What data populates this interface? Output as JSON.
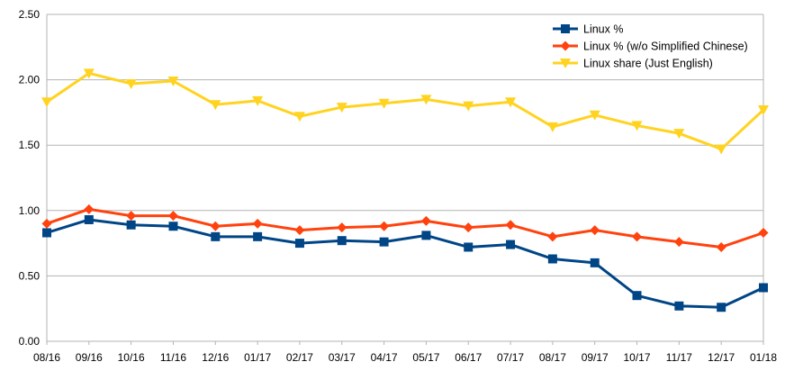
{
  "chart_data": {
    "type": "line",
    "title": "",
    "xlabel": "",
    "ylabel": "",
    "ylim": [
      0,
      2.5
    ],
    "yticks": [
      "0.00",
      "0.50",
      "1.00",
      "1.50",
      "2.00",
      "2.50"
    ],
    "grid": true,
    "legend_position": "top-right",
    "categories": [
      "08/16",
      "09/16",
      "10/16",
      "11/16",
      "12/16",
      "01/17",
      "02/17",
      "03/17",
      "04/17",
      "05/17",
      "06/17",
      "07/17",
      "08/17",
      "09/17",
      "10/17",
      "11/17",
      "12/17",
      "01/18"
    ],
    "series": [
      {
        "name": "Linux %",
        "color": "#004586",
        "marker": "square",
        "values": [
          0.83,
          0.93,
          0.89,
          0.88,
          0.8,
          0.8,
          0.75,
          0.77,
          0.76,
          0.81,
          0.72,
          0.74,
          0.63,
          0.6,
          0.35,
          0.27,
          0.26,
          0.41
        ]
      },
      {
        "name": "Linux % (w/o Simplified Chinese)",
        "color": "#ff420e",
        "marker": "diamond",
        "values": [
          0.9,
          1.01,
          0.96,
          0.96,
          0.88,
          0.9,
          0.85,
          0.87,
          0.88,
          0.92,
          0.87,
          0.89,
          0.8,
          0.85,
          0.8,
          0.76,
          0.72,
          0.83
        ]
      },
      {
        "name": "Linux share (Just English)",
        "color": "#ffd320",
        "marker": "triangle-down",
        "values": [
          1.83,
          2.05,
          1.97,
          1.99,
          1.81,
          1.84,
          1.72,
          1.79,
          1.82,
          1.85,
          1.8,
          1.83,
          1.64,
          1.73,
          1.65,
          1.59,
          1.47,
          1.77
        ]
      }
    ]
  }
}
